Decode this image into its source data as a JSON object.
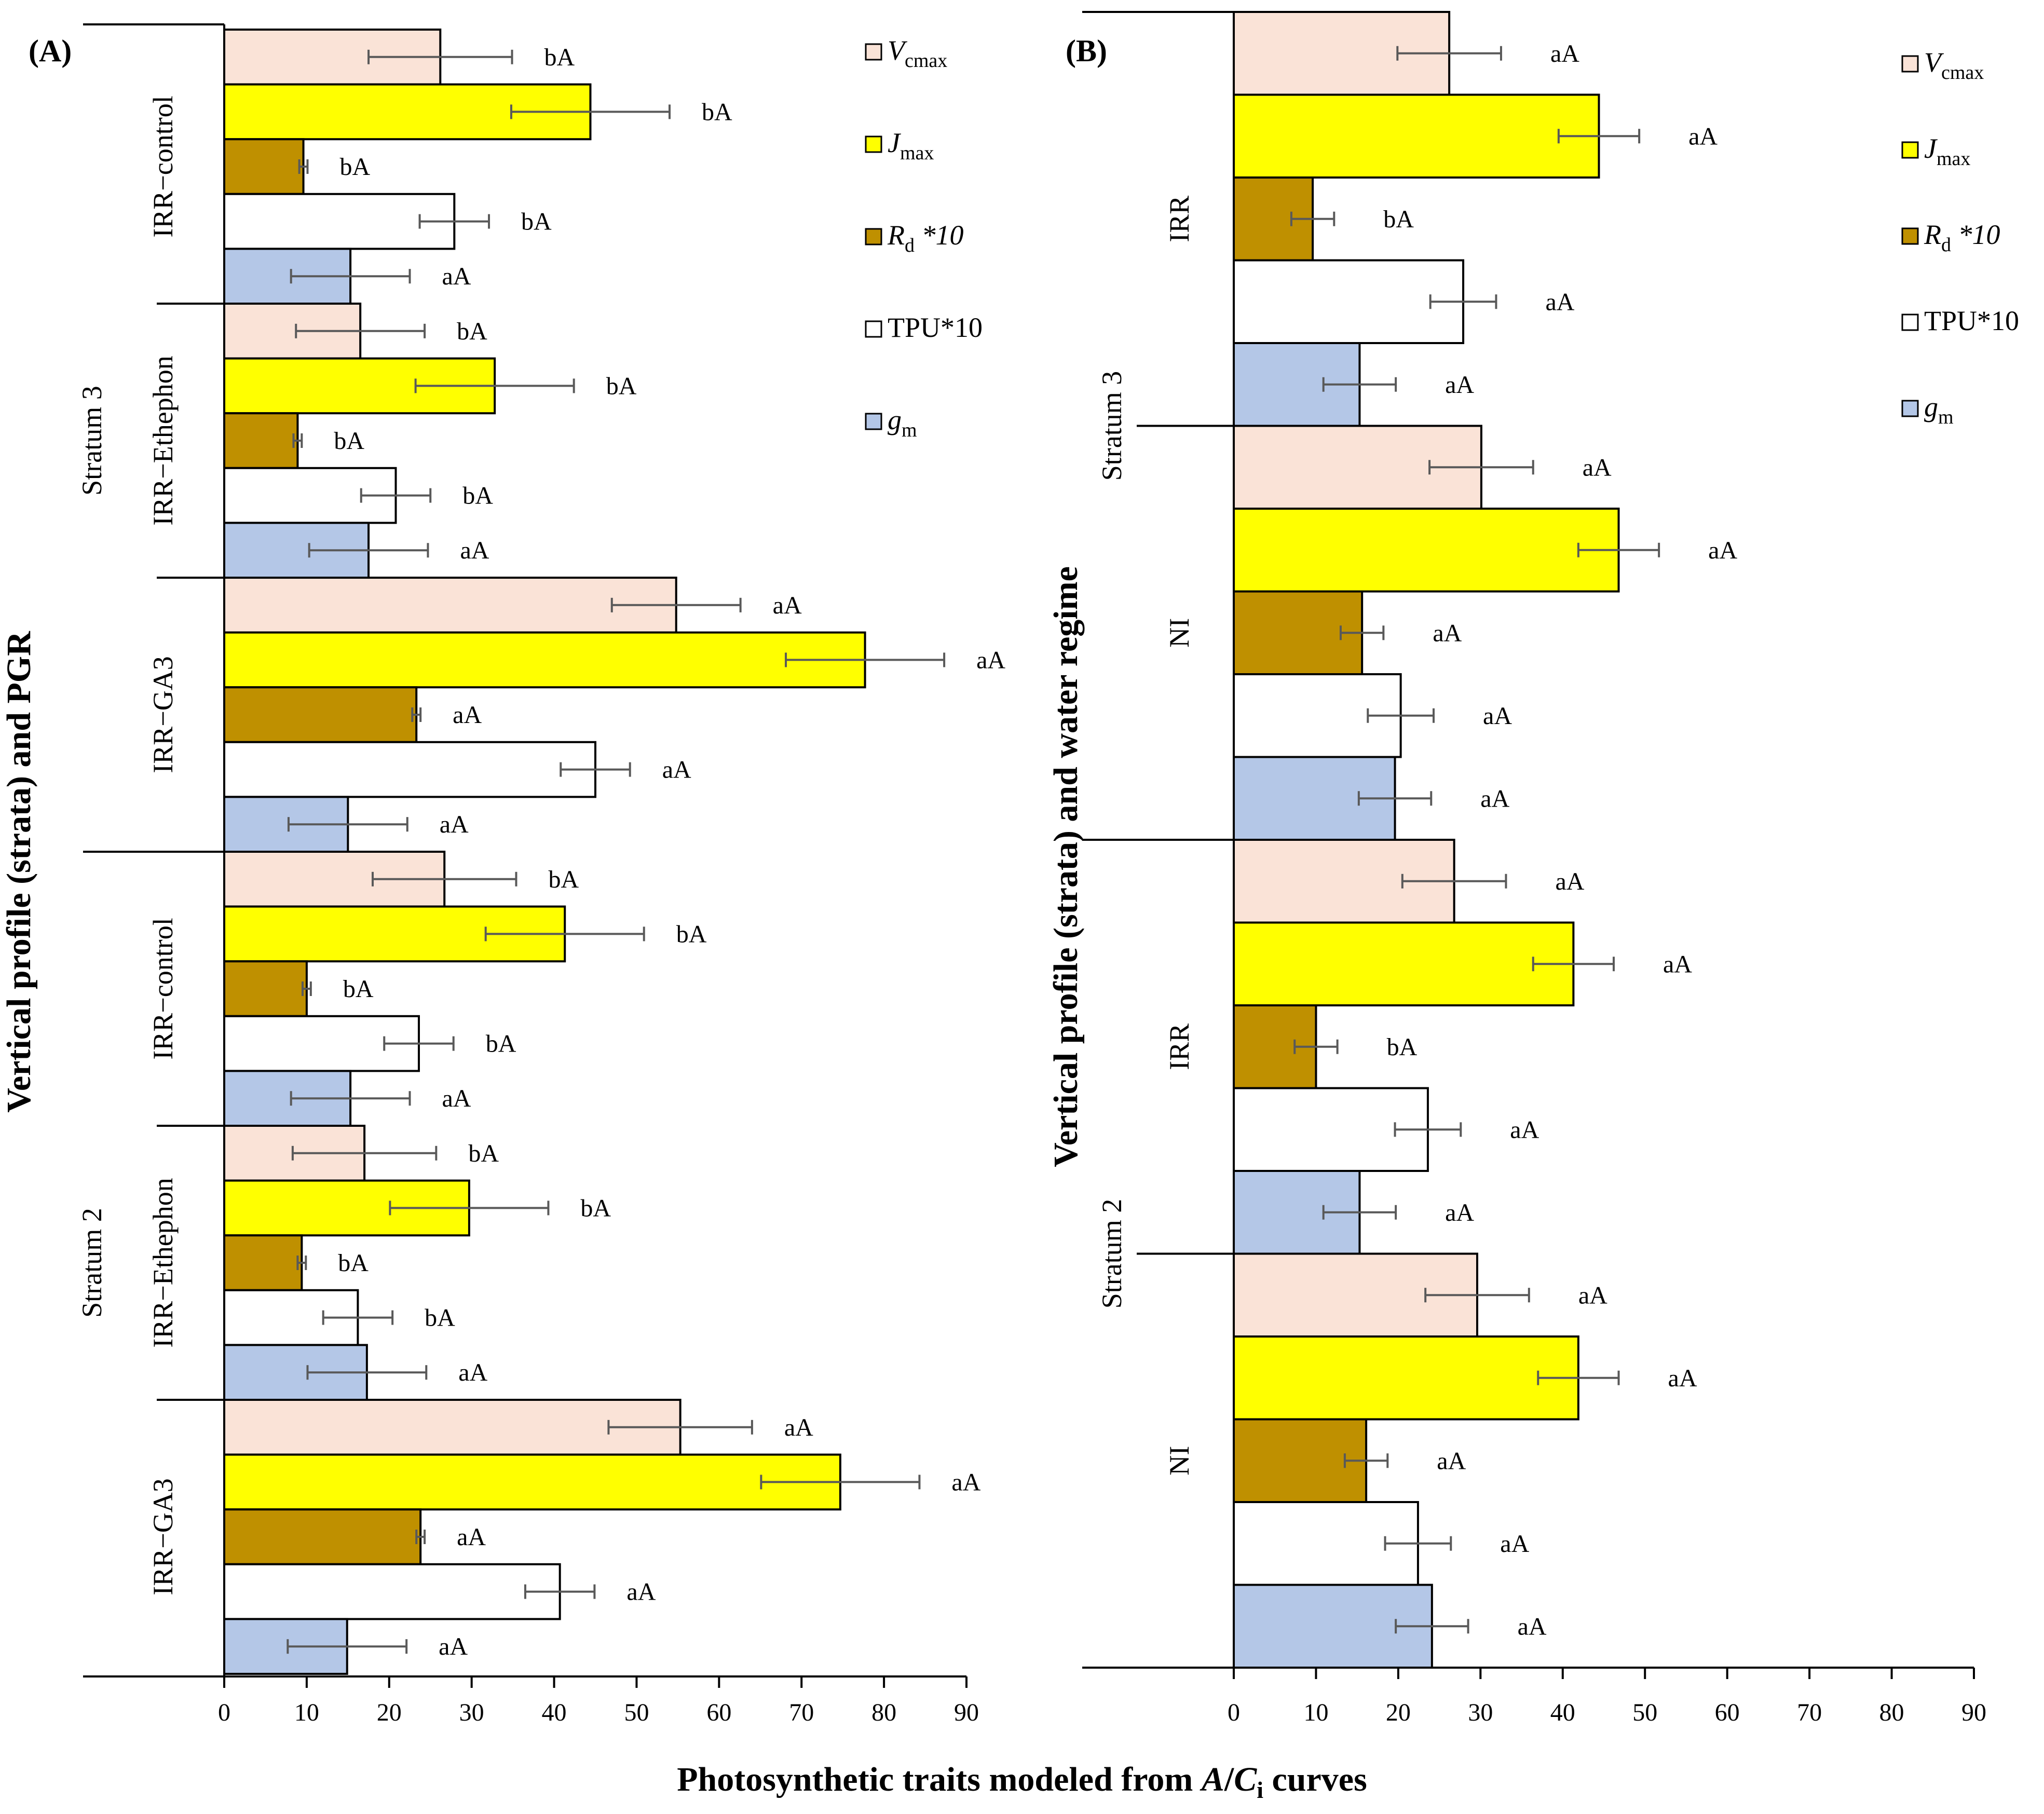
{
  "colors": {
    "Vcmax": "#fae3d7",
    "Jmax": "#ffff00",
    "Rd": "#bf9000",
    "TPU": "#ffffff",
    "gm": "#b4c7e7",
    "errorbar": "#595959",
    "axis": "#000000"
  },
  "legend": [
    {
      "key": "Vcmax",
      "main": "V",
      "sub": "cmax",
      "italic": true,
      "suffix": ""
    },
    {
      "key": "Jmax",
      "main": "J",
      "sub": "max",
      "italic": true,
      "suffix": ""
    },
    {
      "key": "Rd",
      "main": "R",
      "sub": "d",
      "italic": true,
      "suffix": " *10"
    },
    {
      "key": "TPU",
      "main": "TPU*10",
      "sub": "",
      "italic": false,
      "suffix": ""
    },
    {
      "key": "gm",
      "main": "g",
      "sub": "m",
      "italic": true,
      "suffix": ""
    }
  ],
  "x_title": {
    "prefix": "Photosynthetic traits  modeled from ",
    "A": "A",
    "slash": "/",
    "C": "C",
    "sub": "i",
    "suffix": " curves"
  },
  "chart_data": [
    {
      "type": "bar",
      "orientation": "horizontal",
      "panel_label": "(A)",
      "y_title": "Vertical profile (strata) and PGR",
      "xlim": [
        0,
        90
      ],
      "xticks": [
        0,
        10,
        20,
        30,
        40,
        50,
        60,
        70,
        80,
        90
      ],
      "series_order": [
        "Vcmax",
        "Jmax",
        "Rd",
        "TPU",
        "gm"
      ],
      "strata": [
        {
          "name": "Stratum 3",
          "groups": [
            "IRR−control",
            "IRR−Ethephon",
            "IRR−GA3"
          ]
        },
        {
          "name": "Stratum 2",
          "groups": [
            "IRR−control",
            "IRR−Ethephon",
            "IRR−GA3"
          ]
        }
      ],
      "groups": [
        {
          "stratum": "Stratum 3",
          "label": "IRR−control",
          "values": [
            26.2,
            44.4,
            9.6,
            27.9,
            15.3
          ],
          "errors": [
            8.7,
            9.6,
            0.5,
            4.2,
            7.2
          ],
          "letters": [
            "bA",
            "bA",
            "bA",
            "bA",
            "aA"
          ]
        },
        {
          "stratum": "Stratum 3",
          "label": "IRR−Ethephon",
          "values": [
            16.5,
            32.8,
            8.9,
            20.8,
            17.5
          ],
          "errors": [
            7.8,
            9.6,
            0.5,
            4.2,
            7.2
          ],
          "letters": [
            "bA",
            "bA",
            "bA",
            "bA",
            "aA"
          ]
        },
        {
          "stratum": "Stratum 3",
          "label": "IRR−GA3",
          "values": [
            54.8,
            77.7,
            23.3,
            45.0,
            15.0
          ],
          "errors": [
            7.8,
            9.6,
            0.5,
            4.2,
            7.2
          ],
          "letters": [
            "aA",
            "aA",
            "aA",
            "aA",
            "aA"
          ]
        },
        {
          "stratum": "Stratum 2",
          "label": "IRR−control",
          "values": [
            26.7,
            41.3,
            10.0,
            23.6,
            15.3
          ],
          "errors": [
            8.7,
            9.6,
            0.5,
            4.2,
            7.2
          ],
          "letters": [
            "bA",
            "bA",
            "bA",
            "bA",
            "aA"
          ]
        },
        {
          "stratum": "Stratum 2",
          "label": "IRR−Ethephon",
          "values": [
            17.0,
            29.7,
            9.4,
            16.2,
            17.3
          ],
          "errors": [
            8.7,
            9.6,
            0.5,
            4.2,
            7.2
          ],
          "letters": [
            "bA",
            "bA",
            "bA",
            "bA",
            "aA"
          ]
        },
        {
          "stratum": "Stratum 2",
          "label": "IRR−GA3",
          "values": [
            55.3,
            74.7,
            23.8,
            40.7,
            14.9
          ],
          "errors": [
            8.7,
            9.6,
            0.5,
            4.2,
            7.2
          ],
          "letters": [
            "aA",
            "aA",
            "aA",
            "aA",
            "aA"
          ]
        }
      ]
    },
    {
      "type": "bar",
      "orientation": "horizontal",
      "panel_label": "(B)",
      "y_title": "Vertical profile (strata) and water regime",
      "xlim": [
        0,
        90
      ],
      "xticks": [
        0,
        10,
        20,
        30,
        40,
        50,
        60,
        70,
        80,
        90
      ],
      "series_order": [
        "Vcmax",
        "Jmax",
        "Rd",
        "TPU",
        "gm"
      ],
      "strata": [
        {
          "name": "Stratum 3",
          "groups": [
            "IRR",
            "NI"
          ]
        },
        {
          "name": "Stratum 2",
          "groups": [
            "IRR",
            "NI"
          ]
        }
      ],
      "groups": [
        {
          "stratum": "Stratum 3",
          "label": "IRR",
          "values": [
            26.2,
            44.4,
            9.6,
            27.9,
            15.3
          ],
          "errors": [
            6.3,
            4.9,
            2.6,
            4.0,
            4.4
          ],
          "letters": [
            "aA",
            "aA",
            "bA",
            "aA",
            "aA"
          ]
        },
        {
          "stratum": "Stratum 3",
          "label": "NI",
          "values": [
            30.1,
            46.8,
            15.6,
            20.3,
            19.6
          ],
          "errors": [
            6.3,
            4.9,
            2.6,
            4.0,
            4.4
          ],
          "letters": [
            "aA",
            "aA",
            "aA",
            "aA",
            "aA"
          ]
        },
        {
          "stratum": "Stratum 2",
          "label": "IRR",
          "values": [
            26.8,
            41.3,
            10.0,
            23.6,
            15.3
          ],
          "errors": [
            6.3,
            4.9,
            2.6,
            4.0,
            4.4
          ],
          "letters": [
            "aA",
            "aA",
            "bA",
            "aA",
            "aA"
          ]
        },
        {
          "stratum": "Stratum 2",
          "label": "NI",
          "values": [
            29.6,
            41.9,
            16.1,
            22.4,
            24.1
          ],
          "errors": [
            6.3,
            4.9,
            2.6,
            4.0,
            4.4
          ],
          "letters": [
            "aA",
            "aA",
            "aA",
            "aA",
            "aA"
          ]
        }
      ]
    }
  ]
}
